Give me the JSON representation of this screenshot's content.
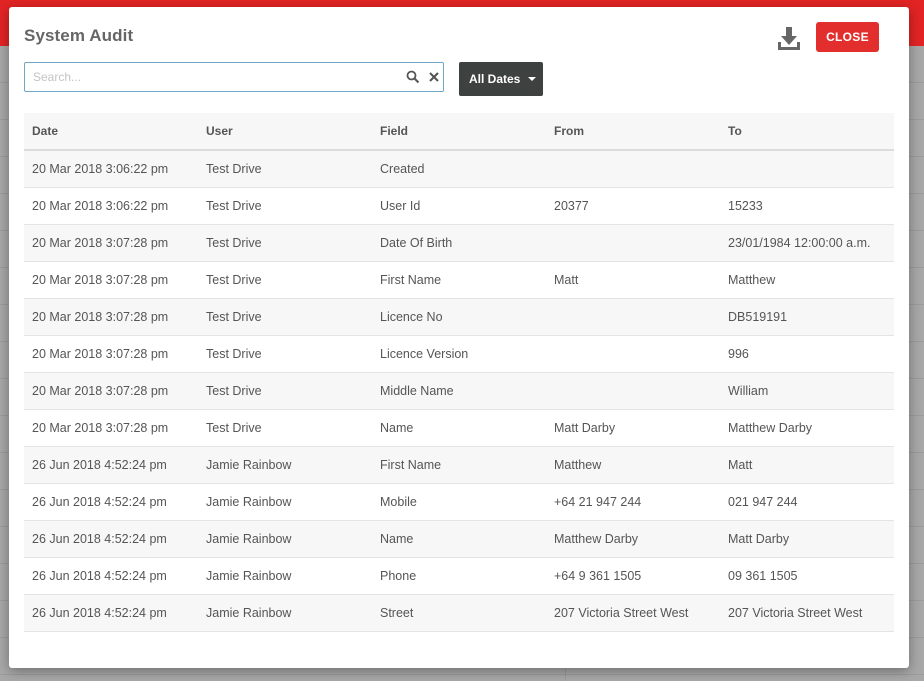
{
  "dialog": {
    "title": "System Audit",
    "close_label": "CLOSE"
  },
  "search": {
    "placeholder": "Search...",
    "value": ""
  },
  "date_filter": {
    "label": "All Dates"
  },
  "table": {
    "columns": [
      "Date",
      "User",
      "Field",
      "From",
      "To"
    ],
    "rows": [
      [
        "20 Mar 2018 3:06:22 pm",
        "Test Drive",
        "Created",
        "",
        ""
      ],
      [
        "20 Mar 2018 3:06:22 pm",
        "Test Drive",
        "User Id",
        "20377",
        "15233"
      ],
      [
        "20 Mar 2018 3:07:28 pm",
        "Test Drive",
        "Date Of Birth",
        "",
        "23/01/1984 12:00:00 a.m."
      ],
      [
        "20 Mar 2018 3:07:28 pm",
        "Test Drive",
        "First Name",
        "Matt",
        "Matthew"
      ],
      [
        "20 Mar 2018 3:07:28 pm",
        "Test Drive",
        "Licence No",
        "",
        "DB519191"
      ],
      [
        "20 Mar 2018 3:07:28 pm",
        "Test Drive",
        "Licence Version",
        "",
        "996"
      ],
      [
        "20 Mar 2018 3:07:28 pm",
        "Test Drive",
        "Middle Name",
        "",
        "William"
      ],
      [
        "20 Mar 2018 3:07:28 pm",
        "Test Drive",
        "Name",
        "Matt Darby",
        "Matthew Darby"
      ],
      [
        "26 Jun 2018 4:52:24 pm",
        "Jamie Rainbow",
        "First Name",
        "Matthew",
        "Matt"
      ],
      [
        "26 Jun 2018 4:52:24 pm",
        "Jamie Rainbow",
        "Mobile",
        "+64 21 947 244",
        "021 947 244"
      ],
      [
        "26 Jun 2018 4:52:24 pm",
        "Jamie Rainbow",
        "Name",
        "Matthew Darby",
        "Matt Darby"
      ],
      [
        "26 Jun 2018 4:52:24 pm",
        "Jamie Rainbow",
        "Phone",
        "+64 9 361 1505",
        "09 361 1505"
      ],
      [
        "26 Jun 2018 4:52:24 pm",
        "Jamie Rainbow",
        "Street",
        "207 Victoria Street West",
        "207 Victoria Street West"
      ]
    ]
  },
  "colors": {
    "accent_red": "#e32e2e",
    "filter_button_bg": "#3d4140",
    "search_border": "#6fa7c9"
  },
  "icons": {
    "download": "download-icon",
    "search": "search-icon",
    "clear": "close-icon",
    "caret": "caret-down-icon"
  }
}
